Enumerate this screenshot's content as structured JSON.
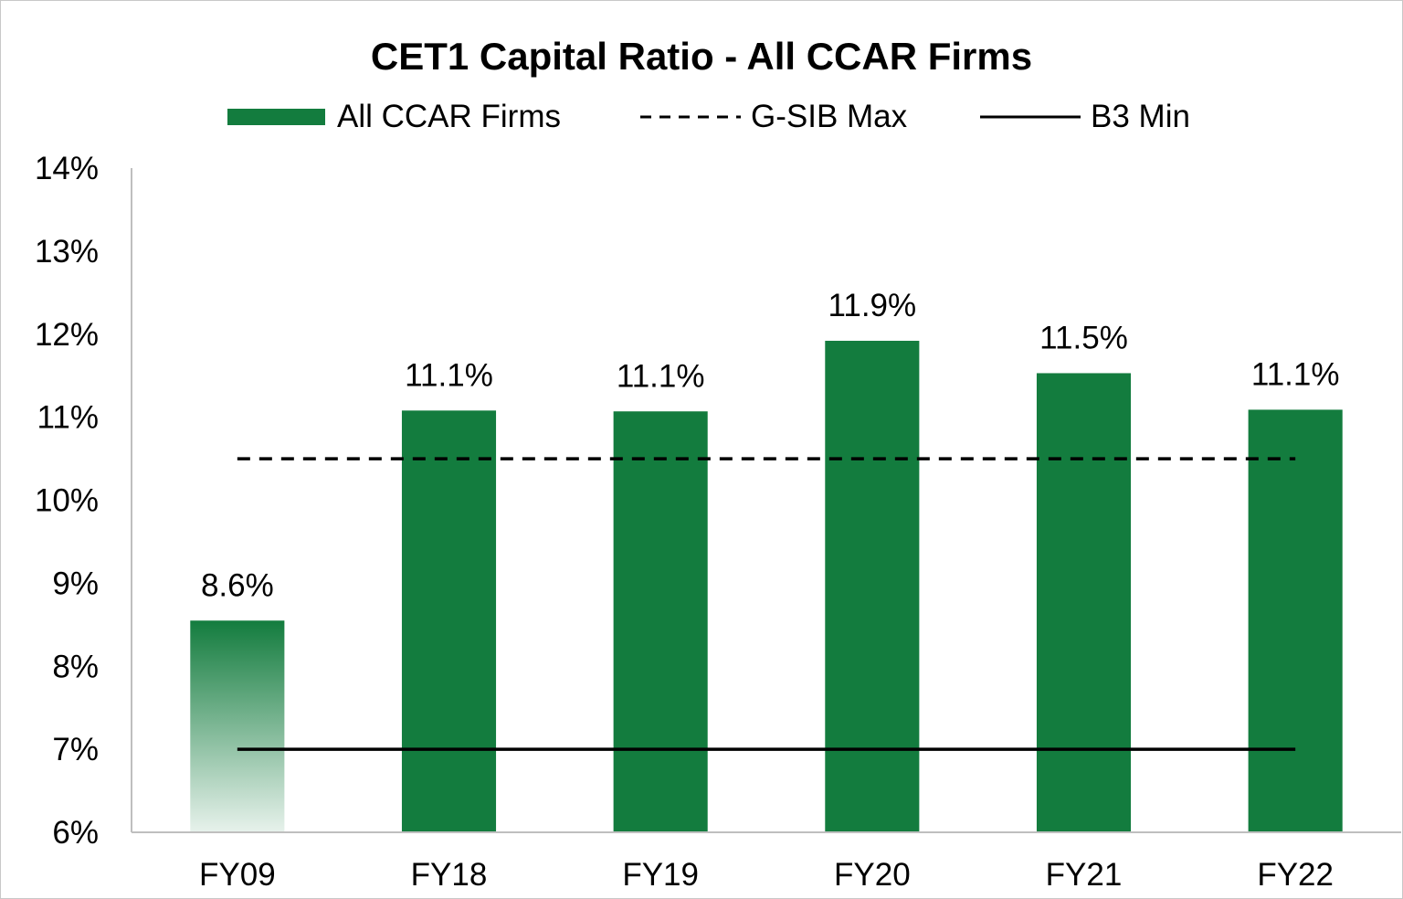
{
  "chart_data": {
    "type": "bar",
    "title": "CET1 Capital Ratio - All CCAR Firms",
    "categories": [
      "FY09",
      "FY18",
      "FY19",
      "FY20",
      "FY21",
      "FY22"
    ],
    "series": [
      {
        "name": "All CCAR Firms",
        "values": [
          8.55,
          11.08,
          11.07,
          11.92,
          11.53,
          11.09
        ],
        "data_labels": [
          "8.6%",
          "11.1%",
          "11.1%",
          "11.9%",
          "11.5%",
          "11.1%"
        ],
        "color": "#137c3e",
        "first_bar_gradient": true
      }
    ],
    "reference_lines": [
      {
        "name": "G-SIB Max",
        "value": 10.5,
        "style": "dashed",
        "color": "#000000"
      },
      {
        "name": "B3 Min",
        "value": 7.0,
        "style": "solid",
        "color": "#000000"
      }
    ],
    "ylim": [
      6,
      14
    ],
    "yticks": [
      6,
      7,
      8,
      9,
      10,
      11,
      12,
      13,
      14
    ],
    "ytick_labels": [
      "6%",
      "7%",
      "8%",
      "9%",
      "10%",
      "11%",
      "12%",
      "13%",
      "14%"
    ],
    "xlabel": "",
    "ylabel": "",
    "grid": false,
    "legend_position": "top"
  }
}
